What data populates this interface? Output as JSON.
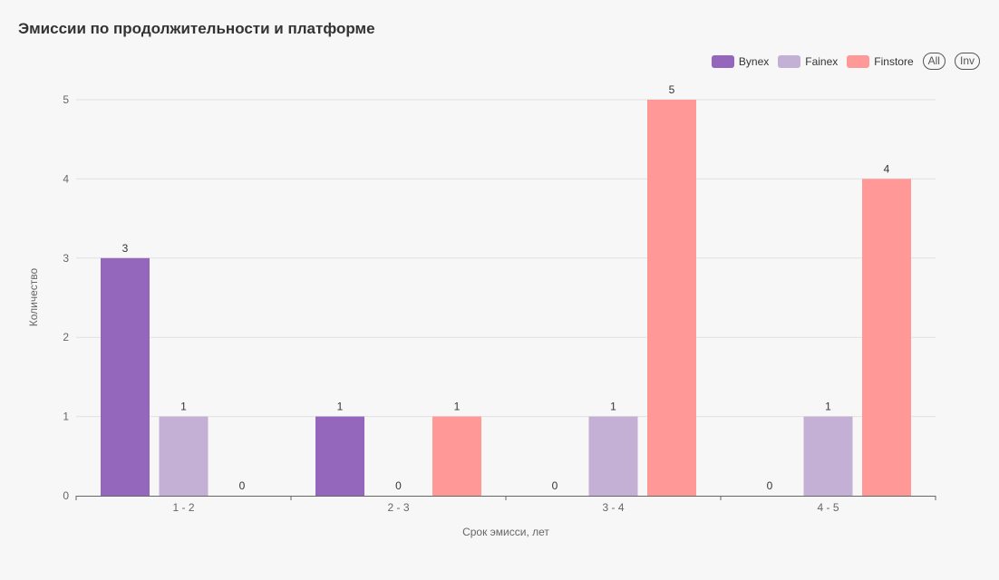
{
  "title": "Эмиссии по продолжительности и платформе",
  "legend": {
    "all_label": "All",
    "inv_label": "Inv"
  },
  "chart_data": {
    "type": "bar",
    "title": "Эмиссии по продолжительности и платформе",
    "xlabel": "Срок эмисси, лет",
    "ylabel": "Количество",
    "categories": [
      "1 - 2",
      "2 - 3",
      "3 - 4",
      "4 - 5"
    ],
    "ylim": [
      0,
      5
    ],
    "yticks": [
      0,
      1,
      2,
      3,
      4,
      5
    ],
    "grid": true,
    "legend_position": "top-right",
    "series": [
      {
        "name": "Bynex",
        "values": [
          3,
          1,
          0,
          0
        ],
        "color": "#9467bd"
      },
      {
        "name": "Fainex",
        "values": [
          1,
          0,
          1,
          1
        ],
        "color": "#c5b0d5"
      },
      {
        "name": "Finstore",
        "values": [
          0,
          1,
          5,
          4
        ],
        "color": "#ff9896"
      }
    ]
  }
}
